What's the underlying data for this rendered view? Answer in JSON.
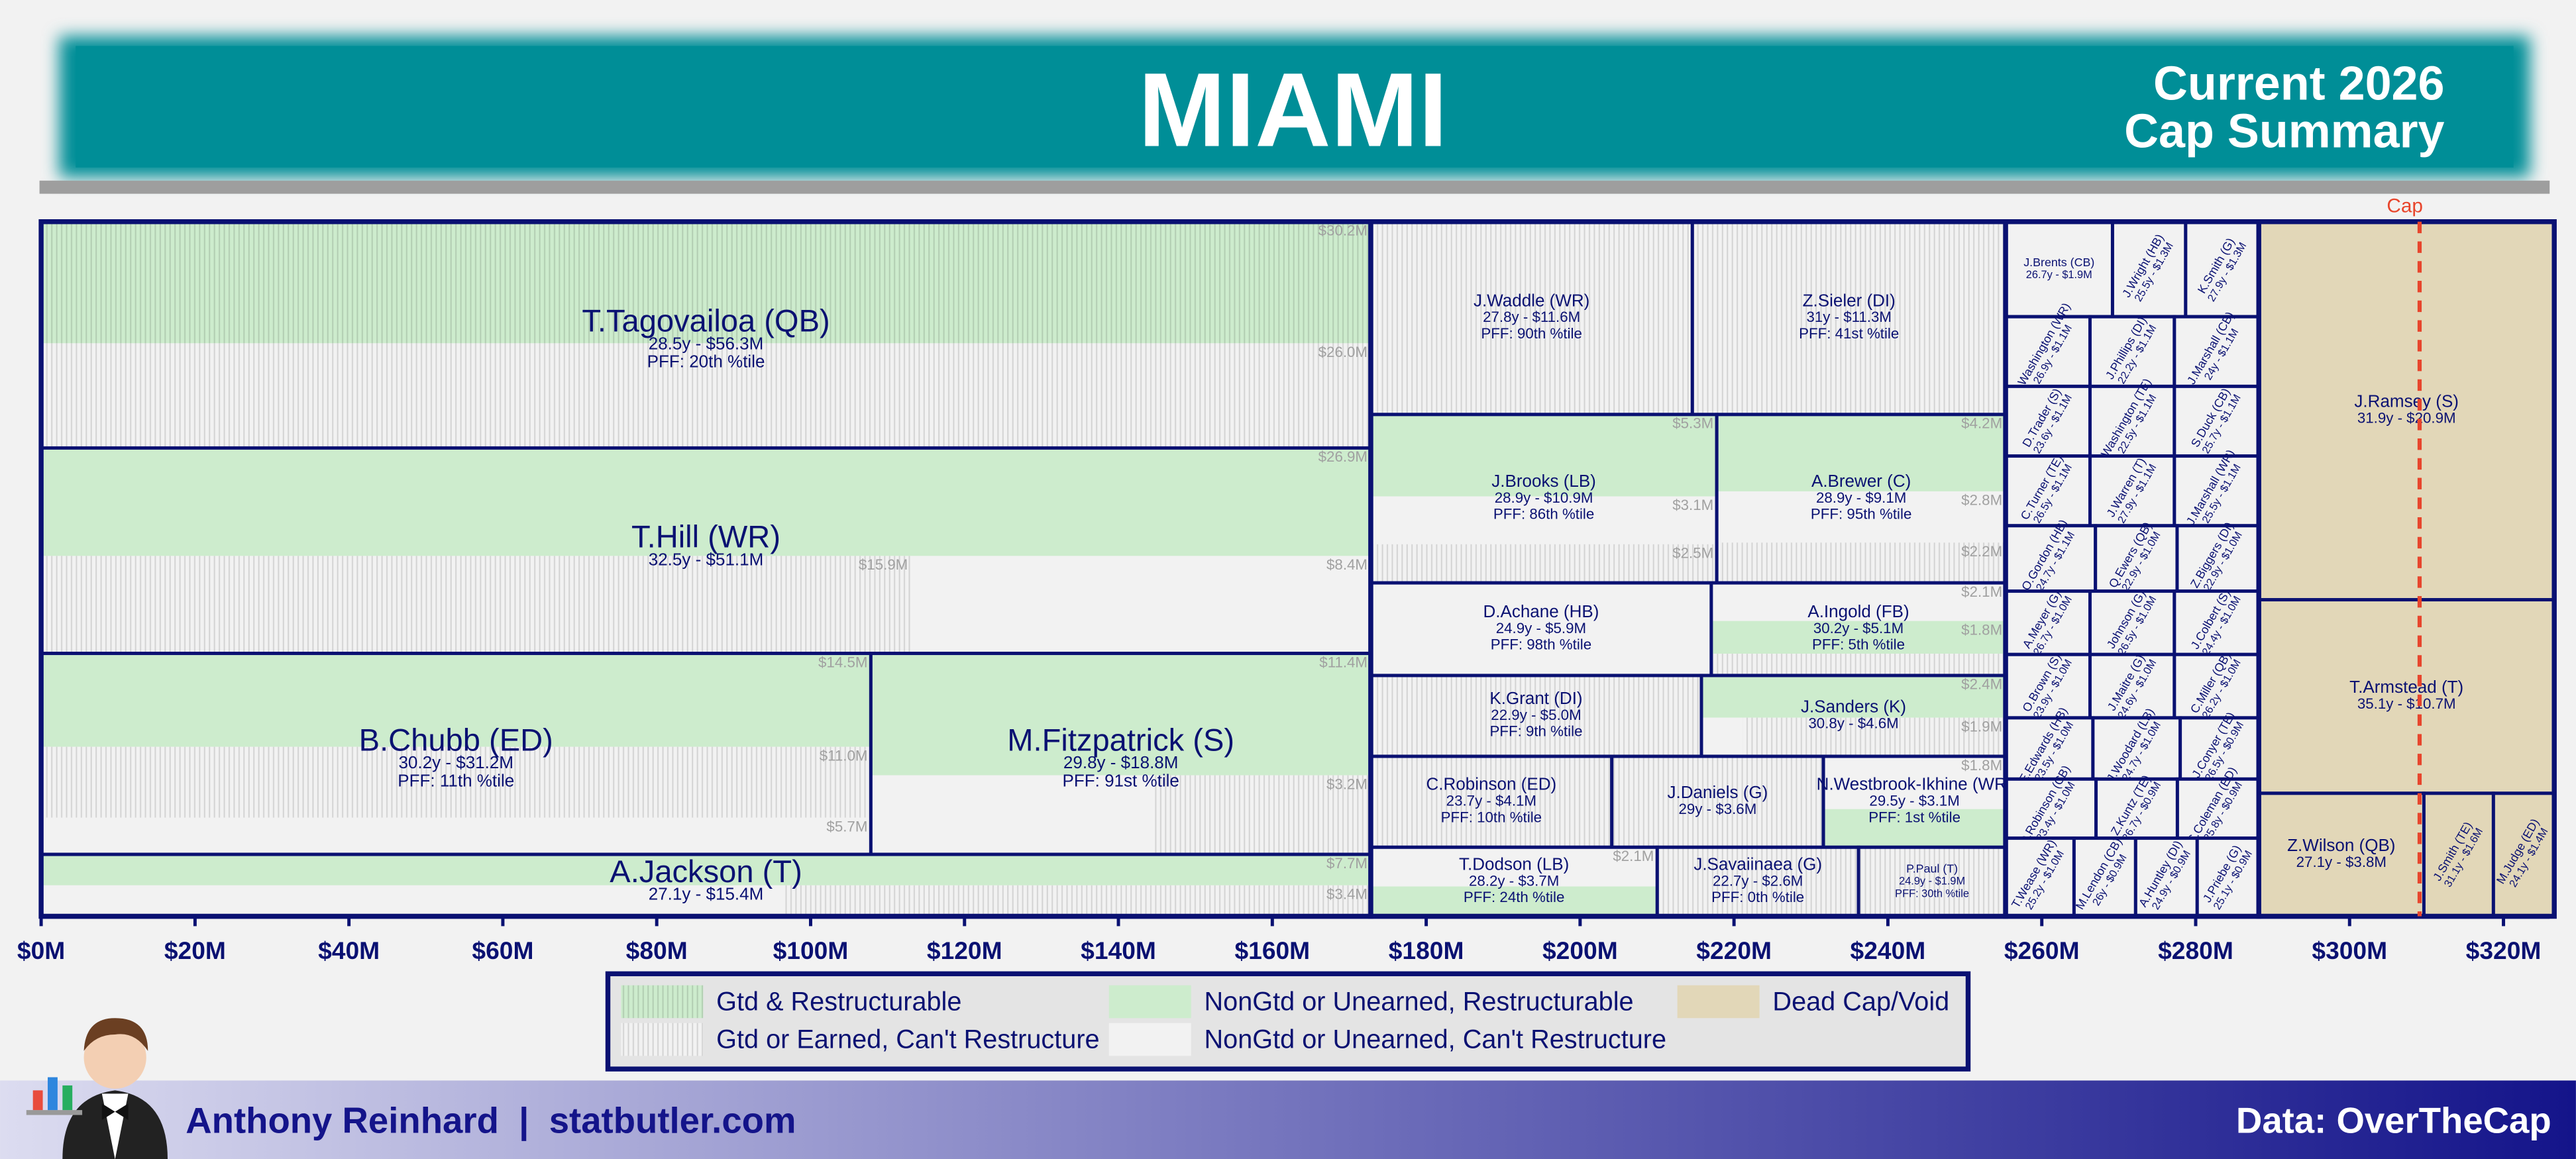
{
  "chart_data": {
    "type": "treemap",
    "title": "MIAMI",
    "subtitle": [
      "Current 2026",
      "Cap Summary"
    ],
    "xlim": [
      0,
      326
    ],
    "xticks": [
      {
        "value": 0,
        "label": "$0M"
      },
      {
        "value": 20,
        "label": "$20M"
      },
      {
        "value": 40,
        "label": "$40M"
      },
      {
        "value": 60,
        "label": "$60M"
      },
      {
        "value": 80,
        "label": "$80M"
      },
      {
        "value": 100,
        "label": "$100M"
      },
      {
        "value": 120,
        "label": "$120M"
      },
      {
        "value": 140,
        "label": "$140M"
      },
      {
        "value": 160,
        "label": "$160M"
      },
      {
        "value": 180,
        "label": "$180M"
      },
      {
        "value": 200,
        "label": "$200M"
      },
      {
        "value": 220,
        "label": "$220M"
      },
      {
        "value": 240,
        "label": "$240M"
      },
      {
        "value": 260,
        "label": "$260M"
      },
      {
        "value": 280,
        "label": "$280M"
      },
      {
        "value": 300,
        "label": "$300M"
      },
      {
        "value": 320,
        "label": "$320M"
      }
    ],
    "cap": {
      "label": "Cap",
      "value": 309.1,
      "color": "#e8452c"
    },
    "legend": [
      {
        "label": "Gtd & Restructurable",
        "color": "#cdeccd",
        "striped": true
      },
      {
        "label": "NonGtd or Unearned, Restructurable",
        "color": "#cdeccd",
        "striped": false
      },
      {
        "label": "Dead Cap/Void",
        "color": "#e2d7b8",
        "striped": false
      },
      {
        "label": "Gtd or Earned, Can't Restructure",
        "color": "#f2f2f2",
        "striped": true
      },
      {
        "label": "NonGtd or Unearned, Can't Restructure",
        "color": "#f2f2f2",
        "striped": false
      }
    ],
    "columns": [
      {
        "rows": [
          {
            "players": [
              {
                "name": "T.Tagovailoa (QB)",
                "details": "28.5y - $56.3M",
                "pff": "PFF: 20th %tile",
                "value": 56.3,
                "segments": [
                  [
                    {
                      "kind": 0,
                      "value": 30.2,
                      "label": "$30.2M"
                    }
                  ],
                  [
                    {
                      "kind": 3,
                      "value": 26.0,
                      "label": "$26.0M"
                    }
                  ]
                ]
              }
            ]
          },
          {
            "players": [
              {
                "name": "T.Hill (WR)",
                "details": "32.5y - $51.1M",
                "value": 51.1,
                "segments": [
                  [
                    {
                      "kind": 1,
                      "value": 26.9,
                      "label": "$26.9M"
                    }
                  ],
                  [
                    {
                      "kind": 3,
                      "value": 15.9,
                      "label": "$15.9M"
                    },
                    {
                      "kind": 4,
                      "value": 8.4,
                      "label": "$8.4M"
                    }
                  ]
                ]
              }
            ]
          },
          {
            "players": [
              {
                "name": "B.Chubb (ED)",
                "details": "30.2y - $31.2M",
                "pff": "PFF: 11th %tile",
                "value": 31.2,
                "segments": [
                  [
                    {
                      "kind": 1,
                      "value": 14.5,
                      "label": "$14.5M"
                    }
                  ],
                  [
                    {
                      "kind": 3,
                      "value": 11.0,
                      "label": "$11.0M"
                    }
                  ],
                  [
                    {
                      "kind": 4,
                      "value": 5.7,
                      "label": "$5.7M"
                    }
                  ]
                ]
              },
              {
                "name": "M.Fitzpatrick (S)",
                "details": "29.8y - $18.8M",
                "pff": "PFF: 91st %tile",
                "value": 18.8,
                "segments": [
                  [
                    {
                      "kind": 1,
                      "value": 11.4,
                      "label": "$11.4M"
                    }
                  ],
                  [
                    {
                      "kind": 4,
                      "value": 4.2
                    },
                    {
                      "kind": 3,
                      "value": 3.2,
                      "label": "$3.2M"
                    }
                  ]
                ]
              }
            ]
          },
          {
            "players": [
              {
                "name": "A.Jackson (T)",
                "details": "27.1y - $15.4M",
                "value": 15.4,
                "segments": [
                  [
                    {
                      "kind": 1,
                      "value": 7.7,
                      "label": "$7.7M"
                    }
                  ],
                  [
                    {
                      "kind": 4,
                      "value": 4.3
                    },
                    {
                      "kind": 3,
                      "value": 3.4,
                      "label": "$3.4M"
                    }
                  ]
                ]
              }
            ]
          }
        ]
      },
      {
        "rows": [
          {
            "players": [
              {
                "name": "J.Waddle (WR)",
                "details": "27.8y - $11.6M",
                "pff": "PFF: 90th %tile",
                "value": 11.6,
                "kind": 3
              },
              {
                "name": "Z.Sieler (DI)",
                "details": "31y - $11.3M",
                "pff": "PFF: 41st %tile",
                "value": 11.3,
                "kind": 3
              }
            ]
          },
          {
            "players": [
              {
                "name": "J.Brooks (LB)",
                "details": "28.9y - $10.9M",
                "pff": "PFF: 86th %tile",
                "value": 10.9,
                "segments": [
                  [
                    {
                      "kind": 1,
                      "value": 5.3,
                      "label": "$5.3M"
                    }
                  ],
                  [
                    {
                      "kind": 4,
                      "value": 3.1,
                      "label": "$3.1M"
                    }
                  ],
                  [
                    {
                      "kind": 3,
                      "value": 2.5,
                      "label": "$2.5M"
                    }
                  ]
                ]
              },
              {
                "name": "A.Brewer (C)",
                "details": "28.9y - $9.1M",
                "pff": "PFF: 95th %tile",
                "value": 9.1,
                "segments": [
                  [
                    {
                      "kind": 1,
                      "value": 4.2,
                      "label": "$4.2M"
                    }
                  ],
                  [
                    {
                      "kind": 4,
                      "value": 2.8,
                      "label": "$2.8M"
                    }
                  ],
                  [
                    {
                      "kind": 3,
                      "value": 2.2,
                      "label": "$2.2M"
                    }
                  ]
                ]
              }
            ]
          },
          {
            "players": [
              {
                "name": "D.Achane (HB)",
                "details": "24.9y - $5.9M",
                "pff": "PFF: 98th %tile",
                "value": 5.9,
                "kind": 4
              },
              {
                "name": "A.Ingold (FB)",
                "details": "30.2y - $5.1M",
                "pff": "PFF: 5th %tile",
                "value": 5.1,
                "segments": [
                  [
                    {
                      "kind": 4,
                      "value": 2.1,
                      "label": "$2.1M"
                    }
                  ],
                  [
                    {
                      "kind": 1,
                      "value": 1.8,
                      "label": "$1.8M"
                    }
                  ],
                  [
                    {
                      "kind": 3,
                      "value": 1.2
                    }
                  ]
                ]
              }
            ]
          },
          {
            "players": [
              {
                "name": "K.Grant (DI)",
                "details": "22.9y - $5.0M",
                "pff": "PFF: 9th %tile",
                "value": 5.0,
                "kind": 3
              },
              {
                "name": "J.Sanders (K)",
                "details": "30.8y - $4.6M",
                "value": 4.6,
                "segments": [
                  [
                    {
                      "kind": 1,
                      "value": 2.4,
                      "label": "$2.4M"
                    }
                  ],
                  [
                    {
                      "kind": 4,
                      "value": 0.3
                    },
                    {
                      "kind": 3,
                      "value": 1.9,
                      "label": "$1.9M"
                    }
                  ]
                ]
              }
            ]
          },
          {
            "players": [
              {
                "name": "C.Robinson (ED)",
                "details": "23.7y - $4.1M",
                "pff": "PFF: 10th %tile",
                "value": 4.1,
                "kind": 3
              },
              {
                "name": "J.Daniels (G)",
                "details": "29y - $3.6M",
                "value": 3.6,
                "kind": 3
              },
              {
                "name": "N.Westbrook-Ikhine (WR)",
                "details": "29.5y - $3.1M",
                "pff": "PFF: 1st %tile",
                "value": 3.1,
                "segments": [
                  [
                    {
                      "kind": 4,
                      "value": 1.8,
                      "label": "$1.8M"
                    }
                  ],
                  [
                    {
                      "kind": 1,
                      "value": 1.3
                    }
                  ]
                ]
              }
            ]
          },
          {
            "players": [
              {
                "name": "T.Dodson (LB)",
                "details": "28.2y - $3.7M",
                "pff": "PFF: 24th %tile",
                "value": 3.7,
                "segments": [
                  [
                    {
                      "kind": 4,
                      "value": 2.1,
                      "label": "$2.1M"
                    }
                  ],
                  [
                    {
                      "kind": 1,
                      "value": 1.6
                    }
                  ]
                ]
              },
              {
                "name": "J.Savaiinaea (G)",
                "details": "22.7y - $2.6M",
                "pff": "PFF: 0th %tile",
                "value": 2.6,
                "kind": 3
              },
              {
                "name": "P.Paul (T)",
                "details": "24.9y - $1.9M",
                "pff": "PFF: 30th %tile",
                "value": 1.9,
                "kind": 3
              }
            ]
          }
        ]
      },
      {
        "rows": [
          {
            "players": [
              {
                "name": "J.Brents (CB)",
                "details": "26.7y - $1.9M",
                "value": 1.9,
                "kind": 4
              },
              {
                "name": "J.Wright (HB)",
                "details": "25.5y - $1.3M",
                "value": 1.3,
                "kind": 4
              },
              {
                "name": "K.Smith (G)",
                "details": "27.9y - $1.3M",
                "value": 1.3,
                "kind": 4
              }
            ]
          },
          {
            "players": [
              {
                "name": "J.Washington (WR)",
                "details": "26.9y - $1.1M",
                "value": 1.1,
                "kind": 4
              },
              {
                "name": "J.Phillips (DI)",
                "details": "22.2y - $1.1M",
                "value": 1.1,
                "kind": 4
              },
              {
                "name": "J.Marshall (CB)",
                "details": "24y - $1.1M",
                "value": 1.1,
                "kind": 4
              }
            ]
          },
          {
            "players": [
              {
                "name": "D.Trader (S)",
                "details": "23.6y - $1.1M",
                "value": 1.1,
                "kind": 4
              },
              {
                "name": "Washington (TE)",
                "details": "22.5y - $1.1M",
                "value": 1.1,
                "kind": 4
              },
              {
                "name": "S.Duck (CB)",
                "details": "25.7y - $1.1M",
                "value": 1.1,
                "kind": 4
              }
            ]
          },
          {
            "players": [
              {
                "name": "C.Turner (TE)",
                "details": "26.5y - $1.1M",
                "value": 1.1,
                "kind": 4
              },
              {
                "name": "J.Warren (T)",
                "details": "27.9y - $1.1M",
                "value": 1.1,
                "kind": 4
              },
              {
                "name": "J.Marshall (WR)",
                "details": "25.5y - $1.1M",
                "value": 1.1,
                "kind": 4
              }
            ]
          },
          {
            "players": [
              {
                "name": "O.Gordon (HB)",
                "details": "24.7y - $1.1M",
                "value": 1.1,
                "kind": 4
              },
              {
                "name": "Q.Ewers (QB)",
                "details": "22.9y - $1.0M",
                "value": 1.0,
                "kind": 4
              },
              {
                "name": "Z.Biggers (DI)",
                "details": "22.9y - $1.0M",
                "value": 1.0,
                "kind": 4
              }
            ]
          },
          {
            "players": [
              {
                "name": "A.Meyer (G)",
                "details": "26.7y - $1.0M",
                "value": 1.0,
                "kind": 4
              },
              {
                "name": "Johnson (G)",
                "details": "26.5y - $1.0M",
                "value": 1.0,
                "kind": 4
              },
              {
                "name": "J.Colbert (S)",
                "details": "24.4y - $1.0M",
                "value": 1.0,
                "kind": 4
              }
            ]
          },
          {
            "players": [
              {
                "name": "O.Brown (S)",
                "details": "23.9y - $1.0M",
                "value": 1.0,
                "kind": 4
              },
              {
                "name": "J.Maitre (G)",
                "details": "24.6y - $1.0M",
                "value": 1.0,
                "kind": 4
              },
              {
                "name": "C.Miller (QB)",
                "details": "26.2y - $1.0M",
                "value": 1.0,
                "kind": 4
              }
            ]
          },
          {
            "players": [
              {
                "name": "E.Edwards (HB)",
                "details": "23.5y - $1.0M",
                "value": 1.0,
                "kind": 4
              },
              {
                "name": "J.Woodard (LB)",
                "details": "24.7y - $1.0M",
                "value": 1.0,
                "kind": 4
              },
              {
                "name": "J.Conyer (TE)",
                "details": "26.5y - $0.9M",
                "value": 0.9,
                "kind": 4
              }
            ]
          },
          {
            "players": [
              {
                "name": "D.Robinson (CB)",
                "details": "23.4y - $1.0M",
                "value": 1.0,
                "kind": 4
              },
              {
                "name": "Z.Kuntz (TE)",
                "details": "26.7y - $0.9M",
                "value": 0.9,
                "kind": 4
              },
              {
                "name": "S.Coleman (ED)",
                "details": "25.8y - $0.9M",
                "value": 0.9,
                "kind": 4
              }
            ]
          },
          {
            "players": [
              {
                "name": "T.Wease (WR)",
                "details": "25.2y - $1.0M",
                "value": 1.0,
                "kind": 4
              },
              {
                "name": "M.Lendon (CB)",
                "details": "26y - $0.9M",
                "value": 0.9,
                "kind": 4
              },
              {
                "name": "A.Huntley (DI)",
                "details": "24.9y - $0.9M",
                "value": 0.9,
                "kind": 4
              },
              {
                "name": "J.Priebe (G)",
                "details": "25.1y - $0.9M",
                "value": 0.9,
                "kind": 4
              }
            ]
          }
        ]
      },
      {
        "rows": [
          {
            "players": [
              {
                "name": "J.Ramsey (S)",
                "details": "31.9y - $20.9M",
                "value": 20.9,
                "kind": 2
              }
            ]
          },
          {
            "players": [
              {
                "name": "T.Armstead (T)",
                "details": "35.1y - $10.7M",
                "value": 10.7,
                "kind": 2
              }
            ]
          },
          {
            "players": [
              {
                "name": "Z.Wilson (QB)",
                "details": "27.1y - $3.8M",
                "value": 3.8,
                "kind": 2
              },
              {
                "name": "J.Smith (TE)",
                "details": "31.1y - $1.6M",
                "value": 1.6,
                "kind": 2
              },
              {
                "name": "M.Judge (ED)",
                "details": "24.1y - $1.4M",
                "value": 1.4,
                "kind": 2
              }
            ]
          }
        ]
      }
    ],
    "author": "Anthony Reinhard  |  statbutler.com",
    "source": "Data: OverTheCap"
  }
}
